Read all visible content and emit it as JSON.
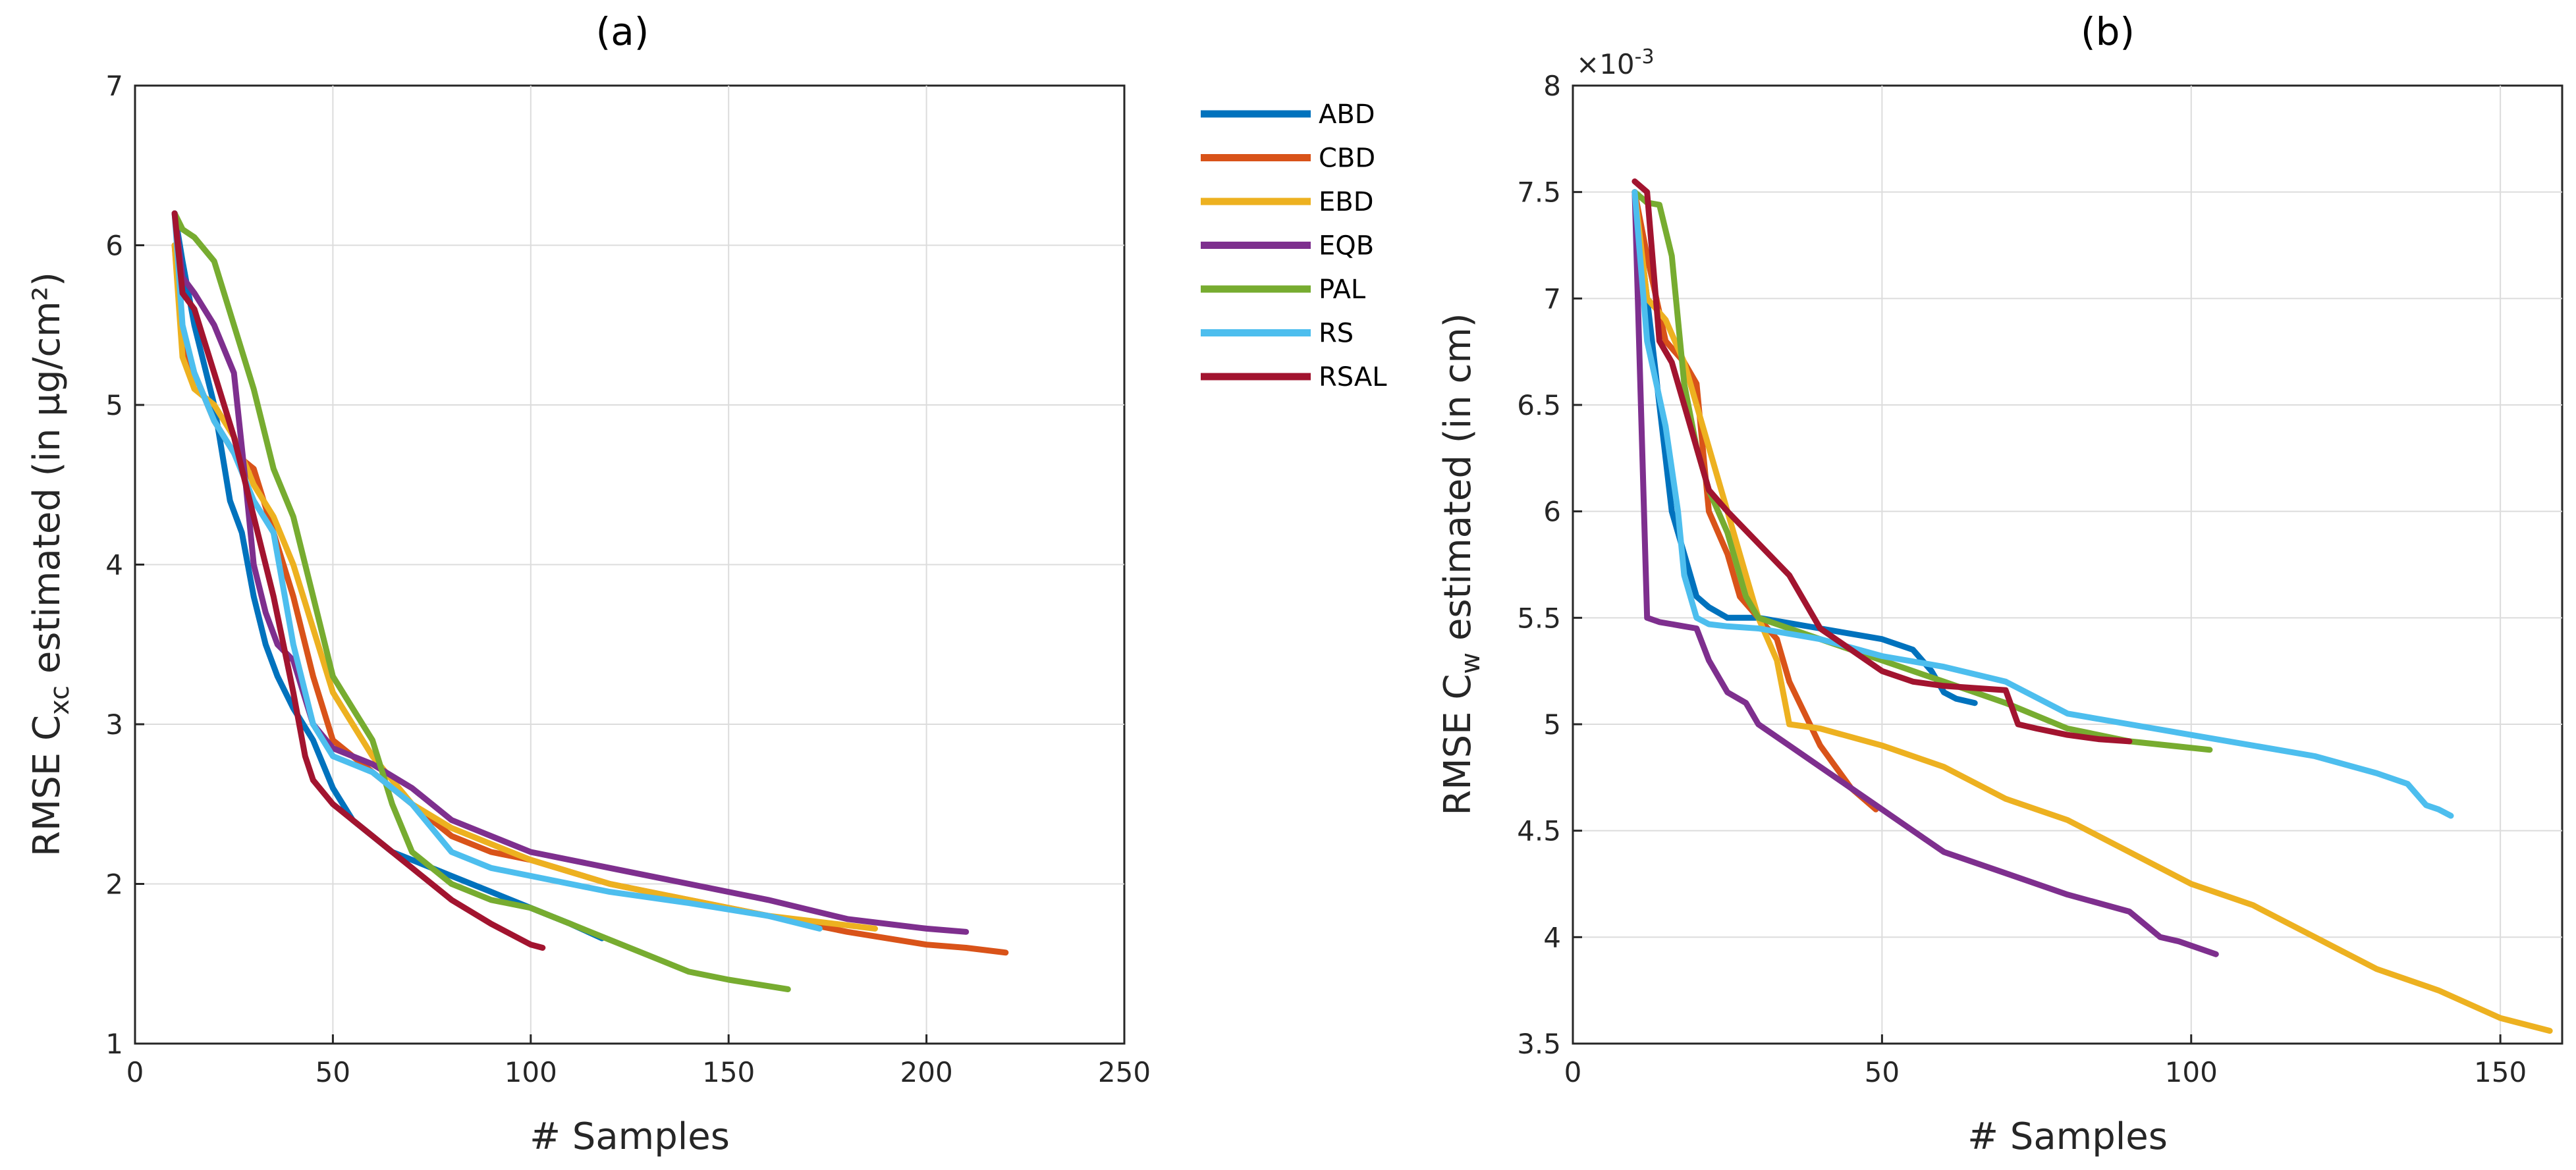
{
  "legend": [
    "ABD",
    "CBD",
    "EBD",
    "EQB",
    "PAL",
    "RS",
    "RSAL"
  ],
  "colors": {
    "ABD": "#0072BD",
    "CBD": "#D95319",
    "EBD": "#EDB120",
    "EQB": "#7E2F8E",
    "PAL": "#77AC30",
    "RS": "#4DBEEE",
    "RSAL": "#A2142F"
  },
  "chart_data": [
    {
      "type": "line",
      "title": "(a)",
      "xlabel": "# Samples",
      "ylabel_main": "RMSE C",
      "ylabel_sub": "xc",
      "ylabel_tail": " estimated (in µg/cm²)",
      "xlim": [
        0,
        250
      ],
      "ylim": [
        1,
        7
      ],
      "xticks": [
        0,
        50,
        100,
        150,
        200,
        250
      ],
      "yticks": [
        1,
        2,
        3,
        4,
        5,
        6,
        7
      ],
      "grid": true,
      "series": [
        {
          "name": "ABD",
          "x": [
            10,
            12,
            15,
            20,
            24,
            27,
            30,
            33,
            36,
            40,
            45,
            50,
            55,
            60,
            65,
            70,
            80,
            90,
            100,
            110,
            118
          ],
          "y": [
            6.2,
            5.9,
            5.5,
            5.0,
            4.4,
            4.2,
            3.8,
            3.5,
            3.3,
            3.1,
            2.9,
            2.6,
            2.4,
            2.3,
            2.2,
            2.15,
            2.05,
            1.95,
            1.85,
            1.75,
            1.66
          ]
        },
        {
          "name": "CBD",
          "x": [
            10,
            12,
            15,
            20,
            25,
            30,
            35,
            40,
            45,
            50,
            60,
            70,
            80,
            90,
            100,
            120,
            140,
            160,
            180,
            200,
            210,
            220
          ],
          "y": [
            6.0,
            5.4,
            5.2,
            4.9,
            4.7,
            4.6,
            4.2,
            3.8,
            3.3,
            2.9,
            2.7,
            2.5,
            2.3,
            2.2,
            2.15,
            2.0,
            1.9,
            1.8,
            1.7,
            1.62,
            1.6,
            1.57
          ]
        },
        {
          "name": "EBD",
          "x": [
            10,
            12,
            15,
            20,
            25,
            30,
            35,
            40,
            45,
            50,
            55,
            60,
            70,
            80,
            90,
            100,
            120,
            140,
            160,
            187
          ],
          "y": [
            6.0,
            5.3,
            5.1,
            5.0,
            4.8,
            4.5,
            4.3,
            4.0,
            3.6,
            3.2,
            3.0,
            2.8,
            2.5,
            2.35,
            2.25,
            2.15,
            2.0,
            1.9,
            1.8,
            1.72
          ]
        },
        {
          "name": "EQB",
          "x": [
            10,
            12,
            15,
            20,
            25,
            28,
            30,
            33,
            36,
            40,
            45,
            50,
            55,
            60,
            70,
            80,
            90,
            100,
            120,
            140,
            160,
            180,
            190,
            200,
            210
          ],
          "y": [
            6.2,
            5.8,
            5.7,
            5.5,
            5.2,
            4.5,
            4.0,
            3.7,
            3.5,
            3.4,
            3.0,
            2.85,
            2.8,
            2.75,
            2.6,
            2.4,
            2.3,
            2.2,
            2.1,
            2.0,
            1.9,
            1.78,
            1.75,
            1.72,
            1.7
          ]
        },
        {
          "name": "PAL",
          "x": [
            10,
            12,
            15,
            20,
            25,
            30,
            35,
            40,
            45,
            50,
            55,
            60,
            65,
            70,
            80,
            90,
            100,
            110,
            120,
            130,
            140,
            150,
            165
          ],
          "y": [
            6.2,
            6.1,
            6.05,
            5.9,
            5.5,
            5.1,
            4.6,
            4.3,
            3.8,
            3.3,
            3.1,
            2.9,
            2.5,
            2.2,
            2.0,
            1.9,
            1.85,
            1.75,
            1.65,
            1.55,
            1.45,
            1.4,
            1.34
          ]
        },
        {
          "name": "RS",
          "x": [
            10,
            12,
            15,
            20,
            25,
            30,
            35,
            40,
            45,
            50,
            55,
            60,
            70,
            80,
            90,
            100,
            120,
            140,
            160,
            173
          ],
          "y": [
            6.2,
            5.5,
            5.2,
            4.9,
            4.7,
            4.4,
            4.2,
            3.5,
            3.0,
            2.8,
            2.75,
            2.7,
            2.5,
            2.2,
            2.1,
            2.05,
            1.95,
            1.88,
            1.8,
            1.72
          ]
        },
        {
          "name": "RSAL",
          "x": [
            10,
            12,
            15,
            20,
            25,
            30,
            35,
            40,
            43,
            45,
            50,
            55,
            60,
            65,
            70,
            75,
            80,
            90,
            100,
            103
          ],
          "y": [
            6.2,
            5.7,
            5.6,
            5.2,
            4.8,
            4.3,
            3.8,
            3.2,
            2.8,
            2.65,
            2.5,
            2.4,
            2.3,
            2.2,
            2.1,
            2.0,
            1.9,
            1.75,
            1.62,
            1.6
          ]
        }
      ]
    },
    {
      "type": "line",
      "title": "(b)",
      "xlabel": "# Samples",
      "ylabel_main": "RMSE C",
      "ylabel_sub": "w",
      "ylabel_tail": " estimated (in cm)",
      "exponent_base": "×10",
      "exponent_power": "-3",
      "xlim": [
        0,
        160
      ],
      "ylim": [
        3.5,
        8
      ],
      "xticks": [
        0,
        50,
        100,
        150
      ],
      "yticks": [
        3.5,
        4,
        4.5,
        5,
        5.5,
        6,
        6.5,
        7,
        7.5,
        8
      ],
      "ytick_labels": [
        "3.5",
        "4",
        "4.5",
        "5",
        "5.5",
        "6",
        "6.5",
        "7",
        "7.5",
        "8"
      ],
      "grid": true,
      "series": [
        {
          "name": "ABD",
          "x": [
            10,
            12,
            14,
            16,
            18,
            20,
            22,
            25,
            30,
            40,
            50,
            55,
            58,
            60,
            62,
            65
          ],
          "y": [
            7.5,
            7.0,
            6.5,
            6.0,
            5.8,
            5.6,
            5.55,
            5.5,
            5.5,
            5.45,
            5.4,
            5.35,
            5.25,
            5.15,
            5.12,
            5.1
          ]
        },
        {
          "name": "CBD",
          "x": [
            10,
            12,
            15,
            18,
            20,
            22,
            25,
            27,
            30,
            33,
            35,
            40,
            45,
            49
          ],
          "y": [
            7.5,
            7.2,
            6.8,
            6.7,
            6.6,
            6.0,
            5.8,
            5.6,
            5.5,
            5.4,
            5.2,
            4.9,
            4.7,
            4.6
          ]
        },
        {
          "name": "EBD",
          "x": [
            10,
            12,
            15,
            18,
            20,
            25,
            28,
            30,
            33,
            35,
            40,
            50,
            60,
            70,
            80,
            90,
            100,
            110,
            120,
            130,
            140,
            150,
            158
          ],
          "y": [
            7.5,
            7.0,
            6.9,
            6.7,
            6.5,
            6.0,
            5.7,
            5.5,
            5.3,
            5.0,
            4.98,
            4.9,
            4.8,
            4.65,
            4.55,
            4.4,
            4.25,
            4.15,
            4.0,
            3.85,
            3.75,
            3.62,
            3.56
          ]
        },
        {
          "name": "EQB",
          "x": [
            10,
            12,
            14,
            16,
            18,
            20,
            22,
            25,
            28,
            30,
            35,
            40,
            45,
            50,
            55,
            60,
            70,
            80,
            90,
            95,
            98,
            100,
            104
          ],
          "y": [
            7.5,
            5.5,
            5.48,
            5.47,
            5.46,
            5.45,
            5.3,
            5.15,
            5.1,
            5.0,
            4.9,
            4.8,
            4.7,
            4.6,
            4.5,
            4.4,
            4.3,
            4.2,
            4.12,
            4.0,
            3.98,
            3.96,
            3.92
          ]
        },
        {
          "name": "PAL",
          "x": [
            10,
            12,
            14,
            16,
            18,
            20,
            22,
            25,
            28,
            30,
            40,
            50,
            60,
            70,
            80,
            90,
            103
          ],
          "y": [
            7.5,
            7.45,
            7.44,
            7.2,
            6.6,
            6.3,
            6.1,
            5.9,
            5.6,
            5.5,
            5.4,
            5.3,
            5.2,
            5.1,
            4.98,
            4.92,
            4.88
          ]
        },
        {
          "name": "RS",
          "x": [
            10,
            12,
            15,
            17,
            18,
            20,
            22,
            25,
            30,
            40,
            50,
            60,
            70,
            80,
            90,
            100,
            110,
            120,
            130,
            135,
            138,
            140,
            142
          ],
          "y": [
            7.5,
            6.8,
            6.4,
            6.0,
            5.7,
            5.5,
            5.47,
            5.46,
            5.45,
            5.4,
            5.32,
            5.27,
            5.2,
            5.05,
            5.0,
            4.95,
            4.9,
            4.85,
            4.77,
            4.72,
            4.62,
            4.6,
            4.57
          ]
        },
        {
          "name": "RSAL",
          "x": [
            10,
            12,
            14,
            16,
            18,
            20,
            22,
            25,
            30,
            35,
            40,
            45,
            50,
            55,
            60,
            65,
            70,
            72,
            75,
            80,
            85,
            90
          ],
          "y": [
            7.55,
            7.5,
            6.8,
            6.7,
            6.5,
            6.3,
            6.1,
            6.0,
            5.85,
            5.7,
            5.45,
            5.35,
            5.25,
            5.2,
            5.18,
            5.17,
            5.16,
            5.0,
            4.98,
            4.95,
            4.93,
            4.92
          ]
        }
      ]
    }
  ]
}
